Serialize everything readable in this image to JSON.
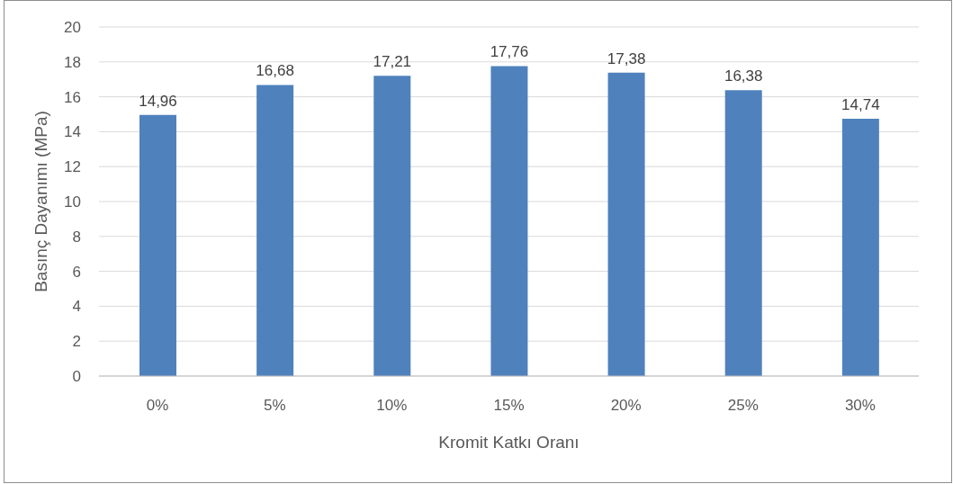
{
  "chart_data": {
    "type": "bar",
    "xlabel": "Kromit Katkı Oranı",
    "ylabel": "Basınç Dayanımı (MPa)",
    "categories": [
      "0%",
      "5%",
      "10%",
      "15%",
      "20%",
      "25%",
      "30%"
    ],
    "values": [
      14.96,
      16.68,
      17.21,
      17.76,
      17.38,
      16.38,
      14.74
    ],
    "value_labels": [
      "14,96",
      "16,68",
      "17,21",
      "17,76",
      "17,38",
      "16,38",
      "14,74"
    ],
    "color": "#4f81bd",
    "ylim": [
      0,
      20
    ],
    "yticks": [
      0,
      2,
      4,
      6,
      8,
      10,
      12,
      14,
      16,
      18,
      20
    ],
    "grid": "y",
    "legend": false
  }
}
